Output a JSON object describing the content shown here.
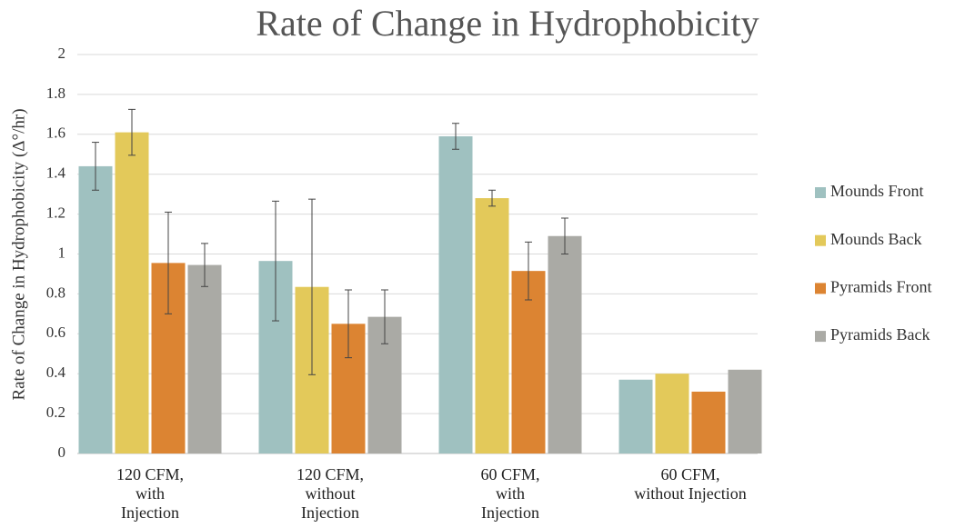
{
  "chart_data": {
    "type": "bar",
    "title": "Rate of Change in Hydrophobicity",
    "y_label": "Rate of Change in Hydrophobicity (Δ°/hr)",
    "categories": [
      "120 CFM,\nwith\nInjection",
      "120 CFM,\nwithout\nInjection",
      "60 CFM,\nwith\nInjection",
      "60 CFM,\nwithout Injection"
    ],
    "series": [
      {
        "name": "Mounds Front",
        "color": "#9fc1c0",
        "values": [
          1.44,
          0.965,
          1.59,
          0.37
        ],
        "errors": [
          0.12,
          0.3,
          0.065,
          null
        ]
      },
      {
        "name": "Mounds Back",
        "color": "#e3c95a",
        "values": [
          1.61,
          0.835,
          1.28,
          0.4
        ],
        "errors": [
          0.115,
          0.44,
          0.04,
          null
        ]
      },
      {
        "name": "Pyramids Front",
        "color": "#dc8432",
        "values": [
          0.955,
          0.65,
          0.915,
          0.31
        ],
        "errors": [
          0.255,
          0.17,
          0.145,
          null
        ]
      },
      {
        "name": "Pyramids Back",
        "color": "#aaaaa5",
        "values": [
          0.945,
          0.685,
          1.09,
          0.42
        ],
        "errors": [
          0.108,
          0.135,
          0.09,
          null
        ]
      }
    ],
    "ylim": [
      0,
      2
    ],
    "yticks": [
      0,
      0.2,
      0.4,
      0.6,
      0.8,
      1,
      1.2,
      1.4,
      1.6,
      1.8,
      2
    ],
    "grid": true,
    "legend": "right"
  }
}
